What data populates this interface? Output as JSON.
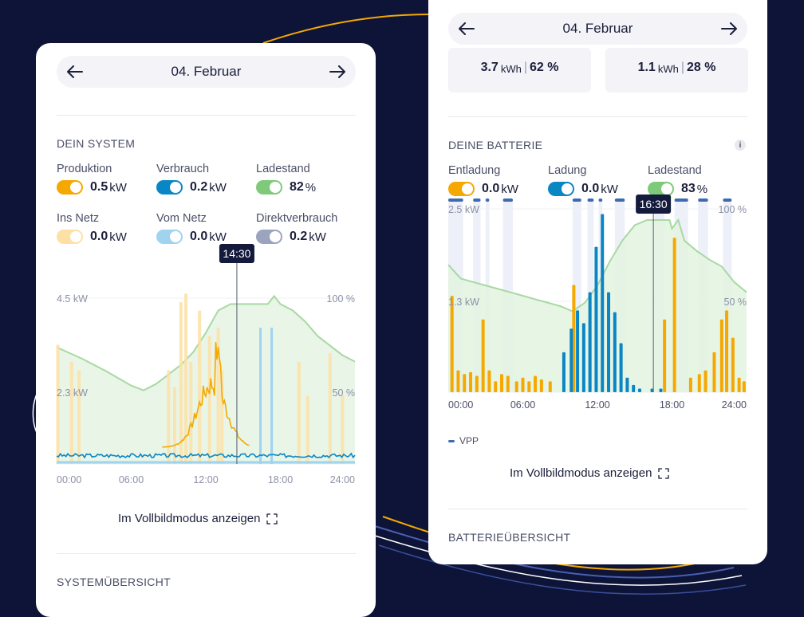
{
  "left": {
    "date": "04. Februar",
    "section_title": "DEIN SYSTEM",
    "metrics": [
      {
        "label": "Produktion",
        "value": "0.5",
        "unit": "kW",
        "color": "#f5a800"
      },
      {
        "label": "Verbrauch",
        "value": "0.2",
        "unit": "kW",
        "color": "#0a86c4"
      },
      {
        "label": "Ladestand",
        "value": "82",
        "unit": "%",
        "color": "#7fc97a"
      },
      {
        "label": "Ins Netz",
        "value": "0.0",
        "unit": "kW",
        "color": "#fde1a4"
      },
      {
        "label": "Vom Netz",
        "value": "0.0",
        "unit": "kW",
        "color": "#9fd3ee"
      },
      {
        "label": "Direktverbrauch",
        "value": "0.2",
        "unit": "kW",
        "color": "#9aa4bd"
      }
    ],
    "chart": {
      "cursor_label": "14:30",
      "cursor_time_h": 14.5,
      "y_left_ticks": [
        "4.5 kW",
        "2.3 kW"
      ],
      "y_right_ticks": [
        "100 %",
        "50 %"
      ],
      "x_ticks": [
        "00:00",
        "06:00",
        "12:00",
        "18:00",
        "24:00"
      ]
    },
    "fullscreen_label": "Im Vollbildmodus anzeigen",
    "overview_title": "SYSTEMÜBERSICHT"
  },
  "right": {
    "date": "04. Februar",
    "stats": [
      {
        "value": "3.7",
        "unit": "kWh",
        "percent": "62 %"
      },
      {
        "value": "1.1",
        "unit": "kWh",
        "percent": "28 %"
      }
    ],
    "section_title": "DEINE BATTERIE",
    "info_icon": "i",
    "metrics": [
      {
        "label": "Entladung",
        "value": "0.0",
        "unit": "kW",
        "color": "#f5a800"
      },
      {
        "label": "Ladung",
        "value": "0.0",
        "unit": "kW",
        "color": "#0a86c4"
      },
      {
        "label": "Ladestand",
        "value": "83",
        "unit": "%",
        "color": "#7fc97a"
      }
    ],
    "chart": {
      "cursor_label": "16:30",
      "cursor_time_h": 16.5,
      "y_left_ticks": [
        "2.5 kW",
        "1.3 kW"
      ],
      "y_right_ticks": [
        "100 %",
        "50 %"
      ],
      "x_ticks": [
        "00:00",
        "06:00",
        "12:00",
        "18:00",
        "24:00"
      ]
    },
    "legend_vpp": "VPP",
    "fullscreen_label": "Im Vollbildmodus anzeigen",
    "overview_title": "BATTERIEÜBERSICHT"
  }
}
